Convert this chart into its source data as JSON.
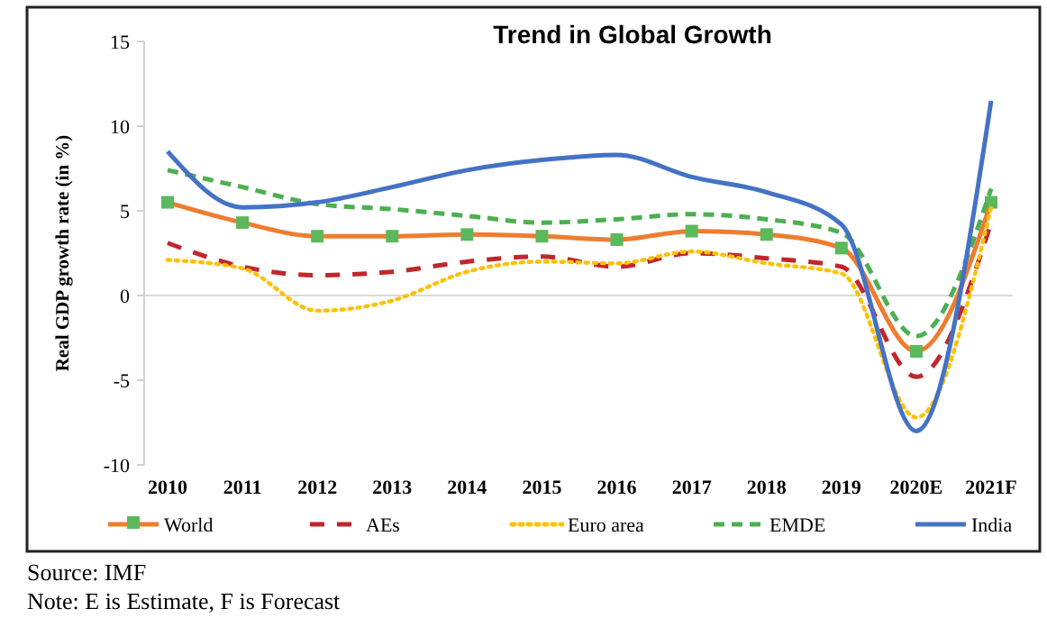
{
  "chart_data": {
    "type": "line",
    "title": "Trend in Global Growth",
    "ylabel": "Real GDP growth rate (in %)",
    "categories": [
      "2010",
      "2011",
      "2012",
      "2013",
      "2014",
      "2015",
      "2016",
      "2017",
      "2018",
      "2019",
      "2020E",
      "2021F"
    ],
    "ylim": [
      -10,
      15
    ],
    "yticks": [
      -10,
      -5,
      0,
      5,
      10,
      15
    ],
    "grid": false,
    "legend": "bottom",
    "ref_lines": [
      {
        "axis": "y",
        "value": 0,
        "color": "#d9d9d9"
      }
    ],
    "series": [
      {
        "name": "World",
        "color": "#ed7d31",
        "line_style": "solid",
        "marker": "square",
        "values": [
          5.5,
          4.3,
          3.5,
          3.5,
          3.6,
          3.5,
          3.3,
          3.8,
          3.6,
          2.8,
          -3.3,
          5.5
        ]
      },
      {
        "name": "AEs",
        "color": "#c0272d",
        "line_style": "dashed",
        "marker": "none",
        "values": [
          3.1,
          1.7,
          1.2,
          1.4,
          2.0,
          2.3,
          1.7,
          2.5,
          2.2,
          1.7,
          -4.8,
          4.3
        ]
      },
      {
        "name": "Euro area",
        "color": "#ffc000",
        "line_style": "dotted",
        "marker": "none",
        "values": [
          2.1,
          1.6,
          -0.9,
          -0.3,
          1.4,
          2.0,
          1.9,
          2.6,
          1.9,
          1.3,
          -7.2,
          5.2
        ]
      },
      {
        "name": "EMDE",
        "color": "#4caf50",
        "line_style": "dashed",
        "marker": "none",
        "values": [
          7.4,
          6.4,
          5.4,
          5.1,
          4.7,
          4.3,
          4.5,
          4.8,
          4.5,
          3.7,
          -2.4,
          6.3
        ]
      },
      {
        "name": "India",
        "color": "#4472c4",
        "line_style": "solid",
        "marker": "none",
        "values": [
          8.5,
          5.2,
          5.5,
          6.4,
          7.4,
          8.0,
          8.3,
          7.0,
          6.1,
          4.2,
          -8.0,
          11.5
        ]
      }
    ],
    "annotations": [
      "Source: IMF",
      "Note: E is Estimate, F is Forecast"
    ]
  }
}
